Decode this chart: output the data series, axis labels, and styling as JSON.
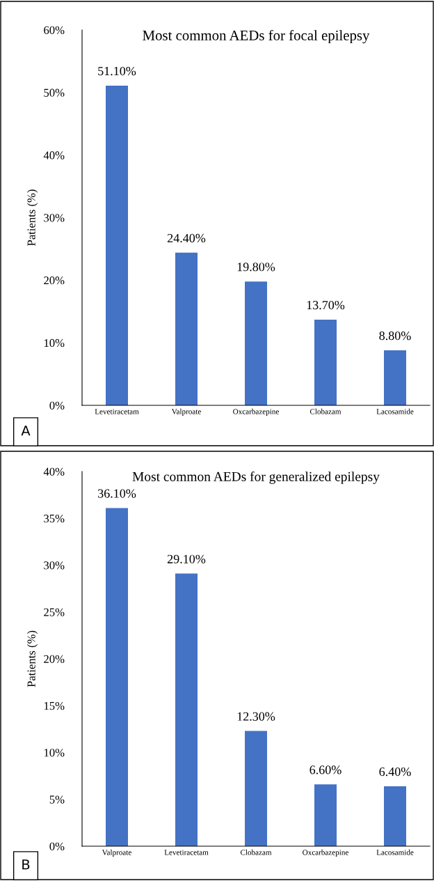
{
  "chart_data": [
    {
      "type": "bar",
      "title": "Most common AEDs for focal epilepsy",
      "ylabel": "Patients (%)",
      "categories": [
        "Levetiracetam",
        "Valproate",
        "Oxcarbazepine",
        "Clobazam",
        "Lacosamide"
      ],
      "values": [
        51.1,
        24.4,
        19.8,
        13.7,
        8.8
      ],
      "value_labels": [
        "51.10%",
        "24.40%",
        "19.80%",
        "13.70%",
        "8.80%"
      ],
      "color": "#4472c4",
      "ylim": [
        0,
        60
      ],
      "yticks": [
        {
          "value": 0,
          "label": "0%"
        },
        {
          "value": 10,
          "label": "10%"
        },
        {
          "value": 20,
          "label": "20%"
        },
        {
          "value": 30,
          "label": "30%"
        },
        {
          "value": 40,
          "label": "40%"
        },
        {
          "value": 50,
          "label": "50%"
        },
        {
          "value": 60,
          "label": "60%"
        }
      ],
      "grid": false,
      "legend": false,
      "annotations": [
        "A"
      ]
    },
    {
      "type": "bar",
      "title": "Most common AEDs for generalized epilepsy",
      "ylabel": "Patients (%)",
      "categories": [
        "Valproate",
        "Levetiracetam",
        "Clobazam",
        "Oxcarbazepine",
        "Lacosamide"
      ],
      "values": [
        36.1,
        29.1,
        12.3,
        6.6,
        6.4
      ],
      "value_labels": [
        "36.10%",
        "29.10%",
        "12.30%",
        "6.60%",
        "6.40%"
      ],
      "color": "#4472c4",
      "ylim": [
        0,
        40
      ],
      "yticks": [
        {
          "value": 0,
          "label": "0%"
        },
        {
          "value": 5,
          "label": "5%"
        },
        {
          "value": 10,
          "label": "10%"
        },
        {
          "value": 15,
          "label": "15%"
        },
        {
          "value": 20,
          "label": "20%"
        },
        {
          "value": 25,
          "label": "25%"
        },
        {
          "value": 30,
          "label": "30%"
        },
        {
          "value": 35,
          "label": "35%"
        },
        {
          "value": 40,
          "label": "40%"
        }
      ],
      "grid": false,
      "legend": false,
      "annotations": [
        "B"
      ]
    }
  ]
}
